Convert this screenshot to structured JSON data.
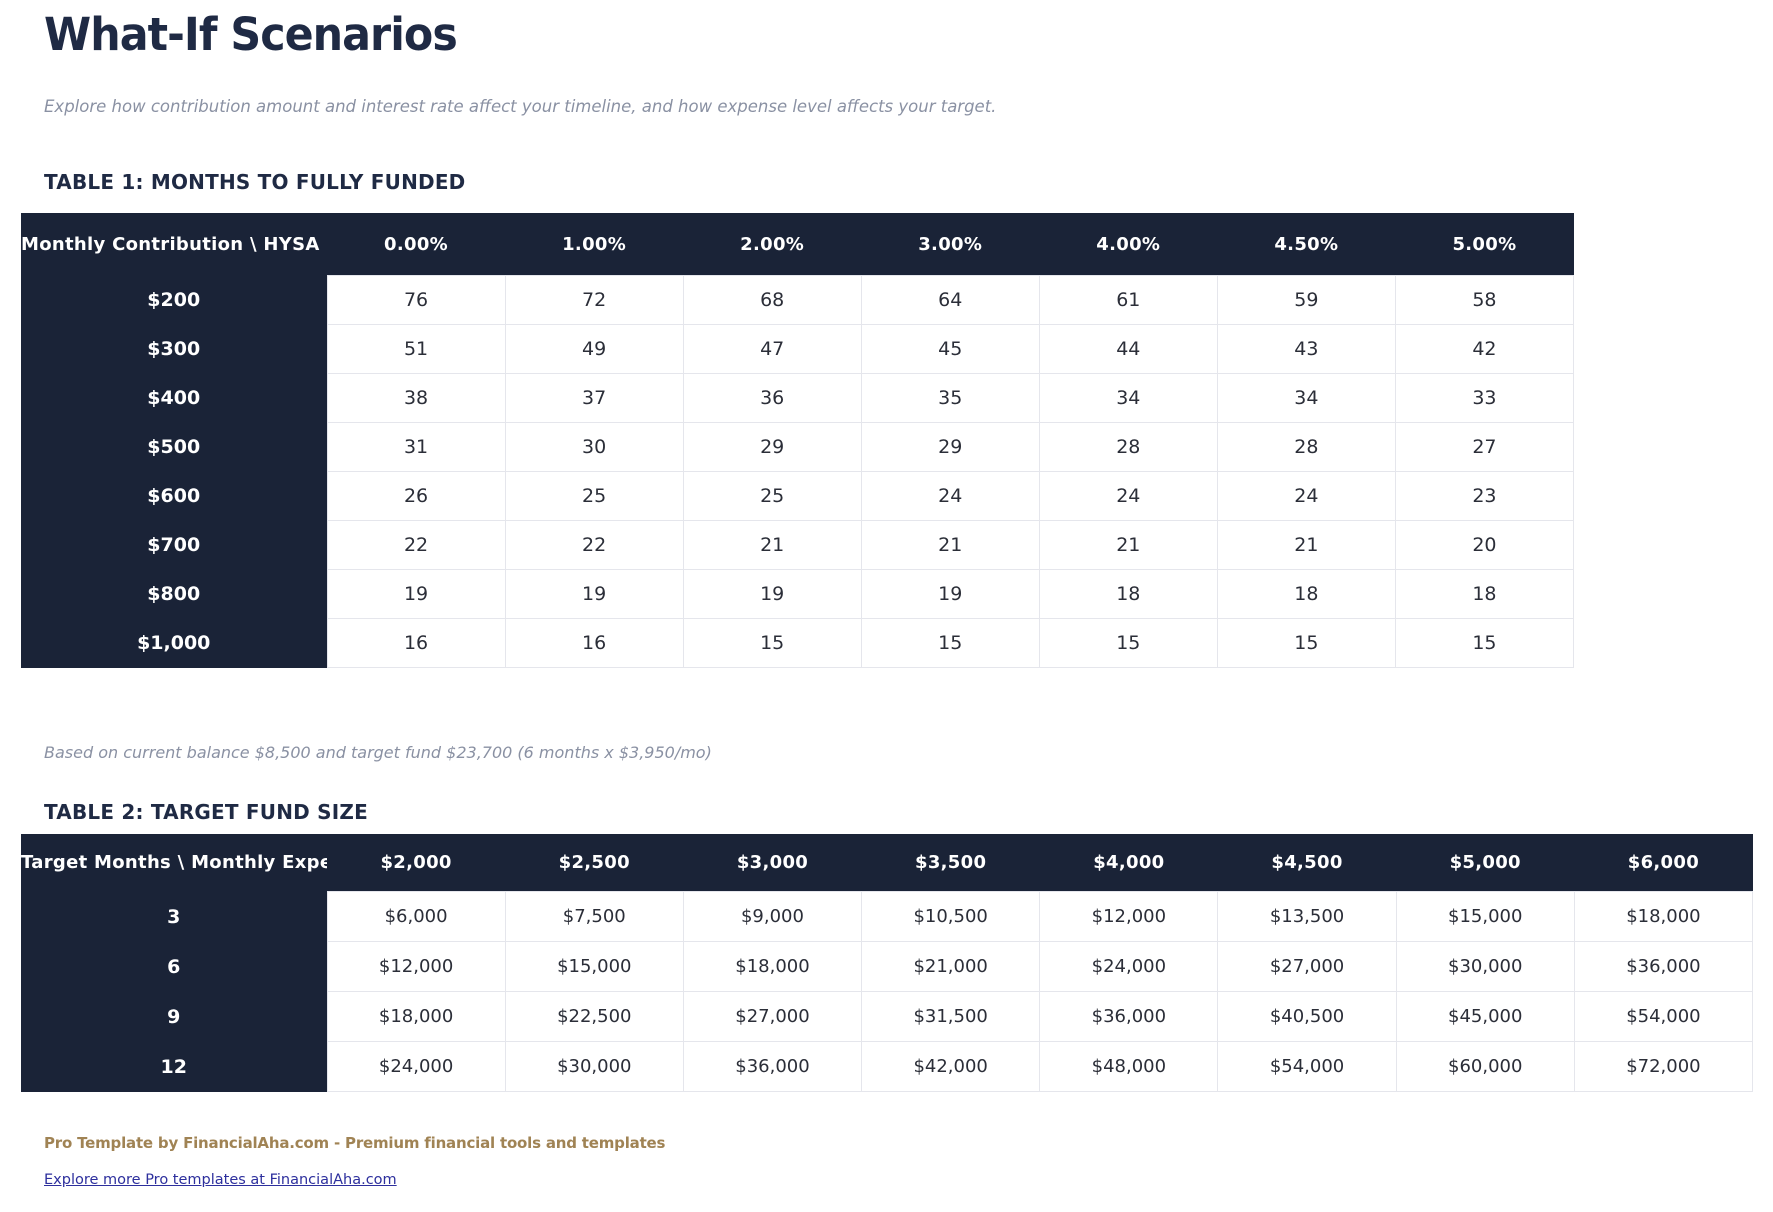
{
  "page": {
    "title": "What-If Scenarios",
    "subtitle": "Explore how contribution amount and interest rate affect your timeline, and how expense level affects your target."
  },
  "table1": {
    "section_title": "TABLE 1: MONTHS TO FULLY FUNDED",
    "corner_label": "Monthly Contribution \\ HYSA Rate",
    "col_headers": [
      "0.00%",
      "1.00%",
      "2.00%",
      "3.00%",
      "4.00%",
      "4.50%",
      "5.00%"
    ],
    "rows": [
      {
        "label": "$200",
        "values": [
          "76",
          "72",
          "68",
          "64",
          "61",
          "59",
          "58"
        ]
      },
      {
        "label": "$300",
        "values": [
          "51",
          "49",
          "47",
          "45",
          "44",
          "43",
          "42"
        ]
      },
      {
        "label": "$400",
        "values": [
          "38",
          "37",
          "36",
          "35",
          "34",
          "34",
          "33"
        ]
      },
      {
        "label": "$500",
        "values": [
          "31",
          "30",
          "29",
          "29",
          "28",
          "28",
          "27"
        ]
      },
      {
        "label": "$600",
        "values": [
          "26",
          "25",
          "25",
          "24",
          "24",
          "24",
          "23"
        ]
      },
      {
        "label": "$700",
        "values": [
          "22",
          "22",
          "21",
          "21",
          "21",
          "21",
          "20"
        ]
      },
      {
        "label": "$800",
        "values": [
          "19",
          "19",
          "19",
          "19",
          "18",
          "18",
          "18"
        ]
      },
      {
        "label": "$1,000",
        "values": [
          "16",
          "16",
          "15",
          "15",
          "15",
          "15",
          "15"
        ]
      }
    ],
    "footnote": "Based on current balance $8,500 and target fund $23,700 (6 months x $3,950/mo)"
  },
  "table2": {
    "section_title": "TABLE 2: TARGET FUND SIZE",
    "corner_label": "Target Months \\ Monthly Expenses",
    "col_headers": [
      "$2,000",
      "$2,500",
      "$3,000",
      "$3,500",
      "$4,000",
      "$4,500",
      "$5,000",
      "$6,000"
    ],
    "rows": [
      {
        "label": "3",
        "values": [
          "$6,000",
          "$7,500",
          "$9,000",
          "$10,500",
          "$12,000",
          "$13,500",
          "$15,000",
          "$18,000"
        ]
      },
      {
        "label": "6",
        "values": [
          "$12,000",
          "$15,000",
          "$18,000",
          "$21,000",
          "$24,000",
          "$27,000",
          "$30,000",
          "$36,000"
        ]
      },
      {
        "label": "9",
        "values": [
          "$18,000",
          "$22,500",
          "$27,000",
          "$31,500",
          "$36,000",
          "$40,500",
          "$45,000",
          "$54,000"
        ]
      },
      {
        "label": "12",
        "values": [
          "$24,000",
          "$30,000",
          "$36,000",
          "$42,000",
          "$48,000",
          "$54,000",
          "$60,000",
          "$72,000"
        ]
      }
    ]
  },
  "footer": {
    "branding": "Pro Template by FinancialAha.com - Premium financial tools and templates",
    "link_text": "Explore more Pro templates at FinancialAha.com"
  },
  "colors": {
    "header_navy": "#1a2337",
    "title_navy": "#1f2a44",
    "body_text": "#2b2e38",
    "muted_gray": "#8a91a3",
    "border_gray": "#e5e6ec",
    "accent_tan": "#a08354",
    "link_blue": "#2d2f9d",
    "page_bg": "#ffffff"
  }
}
